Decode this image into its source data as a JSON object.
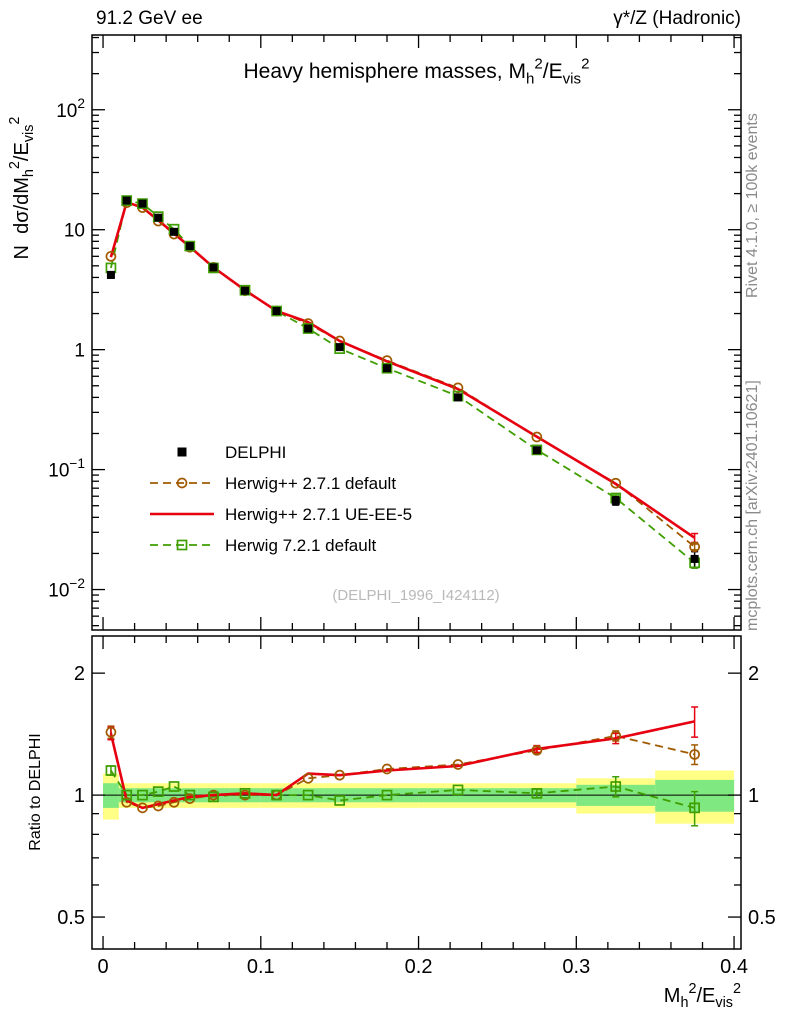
{
  "header": {
    "left": "91.2 GeV ee",
    "right": "γ*/Z (Hadronic)"
  },
  "margin_notes": {
    "top": "Rivet 4.1.0, ≥ 100k events",
    "bottom": "mcplots.cern.ch [arXiv:2401.10621]"
  },
  "watermark": "(DELPHI_1996_I424112)",
  "chart_data": {
    "type": "line",
    "title_plain": "Heavy hemisphere masses, M_h^2/E_vis^2",
    "title_parts": [
      "Heavy hemisphere masses, M",
      {
        "sub": "h"
      },
      {
        "sup": "2"
      },
      "/E",
      {
        "sub": "vis"
      },
      {
        "sup": "2"
      }
    ],
    "main_ylabel_parts": [
      "N  dσ/dM",
      {
        "sub": "h"
      },
      {
        "sup": "2"
      },
      "/E",
      {
        "sub": "vis"
      },
      {
        "sup": "2"
      }
    ],
    "xlabel_parts": [
      "M",
      {
        "sub": "h"
      },
      {
        "sup": "2"
      },
      "/E",
      {
        "sub": "vis"
      },
      {
        "sup": "2"
      }
    ],
    "ratio_ylabel": "Ratio to DELPHI",
    "x": [
      0.005,
      0.015,
      0.025,
      0.035,
      0.045,
      0.055,
      0.07,
      0.09,
      0.11,
      0.13,
      0.15,
      0.18,
      0.225,
      0.275,
      0.325,
      0.375
    ],
    "bin_edges": [
      0,
      0.01,
      0.02,
      0.03,
      0.04,
      0.05,
      0.06,
      0.08,
      0.1,
      0.12,
      0.14,
      0.16,
      0.2,
      0.25,
      0.3,
      0.35,
      0.4
    ],
    "series": [
      {
        "name": "DELPHI",
        "color": "#000000",
        "marker": "square-filled",
        "line": "none",
        "values": [
          4.2,
          17.5,
          16.5,
          12.6,
          9.6,
          7.3,
          4.85,
          3.1,
          2.1,
          1.5,
          1.05,
          0.7,
          0.4,
          0.145,
          0.055,
          0.018
        ],
        "rel_err": [
          0.06,
          0.02,
          0.02,
          0.02,
          0.02,
          0.02,
          0.02,
          0.02,
          0.02,
          0.02,
          0.025,
          0.025,
          0.03,
          0.04,
          0.08,
          0.15
        ]
      },
      {
        "name": "Herwig++ 2.7.1 default",
        "color": "#a05a00",
        "marker": "circle-open",
        "line": "dashed",
        "values": [
          6.0,
          16.8,
          15.3,
          11.8,
          9.2,
          7.15,
          4.85,
          3.1,
          2.1,
          1.65,
          1.18,
          0.81,
          0.48,
          0.187,
          0.077,
          0.0227
        ],
        "ratio": [
          1.43,
          0.96,
          0.93,
          0.94,
          0.96,
          0.98,
          1.0,
          1.0,
          1.0,
          1.1,
          1.12,
          1.16,
          1.19,
          1.29,
          1.4,
          1.26
        ],
        "ratio_err": [
          0.05,
          0.01,
          0.01,
          0.01,
          0.01,
          0.01,
          0.01,
          0.01,
          0.01,
          0.015,
          0.015,
          0.015,
          0.02,
          0.025,
          0.04,
          0.07
        ]
      },
      {
        "name": "Herwig++ 2.7.1 UE-EE-5",
        "color": "#e60010",
        "marker": "none",
        "line": "solid",
        "width": 2.6,
        "values": [
          5.9,
          17.0,
          15.3,
          12.0,
          9.3,
          7.2,
          4.85,
          3.13,
          2.1,
          1.7,
          1.18,
          0.8,
          0.47,
          0.188,
          0.076,
          0.027
        ],
        "ratio": [
          1.42,
          0.97,
          0.93,
          0.95,
          0.97,
          0.99,
          1.0,
          1.01,
          1.0,
          1.13,
          1.12,
          1.15,
          1.18,
          1.3,
          1.38,
          1.52
        ],
        "ratio_err": [
          0.05,
          0.01,
          0.01,
          0.01,
          0.01,
          0.01,
          0.01,
          0.01,
          0.01,
          0.015,
          0.015,
          0.015,
          0.02,
          0.025,
          0.04,
          0.13
        ]
      },
      {
        "name": "Herwig 7.2.1 default",
        "color": "#3f9e00",
        "marker": "square-open",
        "line": "dashed",
        "values": [
          4.8,
          17.5,
          16.5,
          12.85,
          10.1,
          7.3,
          4.8,
          3.13,
          2.1,
          1.5,
          1.02,
          0.7,
          0.41,
          0.146,
          0.058,
          0.0167
        ],
        "ratio": [
          1.15,
          1.0,
          1.0,
          1.02,
          1.05,
          1.0,
          0.99,
          1.01,
          1.0,
          1.0,
          0.97,
          1.0,
          1.03,
          1.01,
          1.05,
          0.93
        ],
        "ratio_err": [
          0.03,
          0.01,
          0.01,
          0.01,
          0.01,
          0.01,
          0.01,
          0.01,
          0.01,
          0.012,
          0.015,
          0.015,
          0.02,
          0.025,
          0.06,
          0.09
        ]
      }
    ],
    "bands": {
      "yellow": {
        "color": "#ffff85",
        "lo": [
          0.87,
          0.93,
          0.93,
          0.93,
          0.93,
          0.93,
          0.93,
          0.93,
          0.93,
          0.93,
          0.93,
          0.93,
          0.93,
          0.93,
          0.9,
          0.85
        ],
        "hi": [
          1.13,
          1.07,
          1.07,
          1.07,
          1.07,
          1.07,
          1.07,
          1.07,
          1.07,
          1.07,
          1.07,
          1.07,
          1.07,
          1.07,
          1.1,
          1.15
        ]
      },
      "green": {
        "color": "#80e880",
        "lo": [
          0.93,
          0.96,
          0.96,
          0.96,
          0.96,
          0.96,
          0.96,
          0.96,
          0.96,
          0.96,
          0.96,
          0.96,
          0.96,
          0.96,
          0.94,
          0.91
        ],
        "hi": [
          1.07,
          1.04,
          1.04,
          1.04,
          1.04,
          1.04,
          1.04,
          1.04,
          1.04,
          1.04,
          1.04,
          1.04,
          1.04,
          1.04,
          1.06,
          1.09
        ]
      }
    },
    "axes": {
      "xlim": [
        -0.007,
        0.4044
      ],
      "x_major": [
        {
          "v": 0,
          "label": "0"
        },
        {
          "v": 0.1,
          "label": "0.1"
        },
        {
          "v": 0.2,
          "label": "0.2"
        },
        {
          "v": 0.3,
          "label": "0.3"
        },
        {
          "v": 0.4,
          "label": "0.4"
        }
      ],
      "x_minor_step": 0.02,
      "main_ylim": [
        0.0046,
        420
      ],
      "main_yticks": [
        {
          "v": 0.01,
          "base": "10",
          "exp": "−2"
        },
        {
          "v": 0.1,
          "base": "10",
          "exp": "−1"
        },
        {
          "v": 1,
          "base": "1",
          "exp": ""
        },
        {
          "v": 10,
          "base": "10",
          "exp": ""
        },
        {
          "v": 100,
          "base": "10",
          "exp": "2"
        }
      ],
      "ratio_ylim": [
        0.417,
        2.47
      ],
      "ratio_yticks": [
        {
          "v": 0.5,
          "label": "0.5"
        },
        {
          "v": 1,
          "label": "1"
        },
        {
          "v": 2,
          "label": "2"
        }
      ],
      "ratio_yminor": [
        0.6,
        0.7,
        0.8,
        0.9
      ],
      "grid": false,
      "legend_position": "middle-left"
    }
  }
}
